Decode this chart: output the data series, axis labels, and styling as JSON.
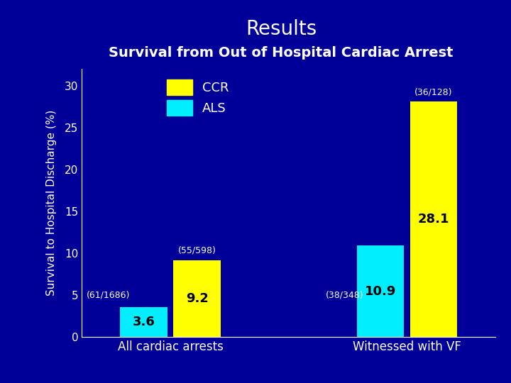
{
  "title_line1": "Results",
  "title_line2": "Survival from Out of Hospital Cardiac Arrest",
  "ylabel": "Survival to Hospital Discharge (%)",
  "groups": [
    "All cardiac arrests",
    "Witnessed with VF"
  ],
  "ccr_values": [
    9.2,
    28.1
  ],
  "als_values": [
    3.6,
    10.9
  ],
  "ccr_labels": [
    "(55/598)",
    "(36/128)"
  ],
  "als_labels": [
    "(61/1686)",
    "(38/348)"
  ],
  "ccr_color": "#FFFF00",
  "als_color": "#00EEFF",
  "background_color": "#000099",
  "text_color": "#FFFFFF",
  "bar_text_color": "#000000",
  "ylim": [
    0,
    32
  ],
  "yticks": [
    0,
    5,
    10,
    15,
    20,
    25,
    30
  ],
  "bar_width": 0.32,
  "group_centers": [
    1.0,
    2.6
  ]
}
